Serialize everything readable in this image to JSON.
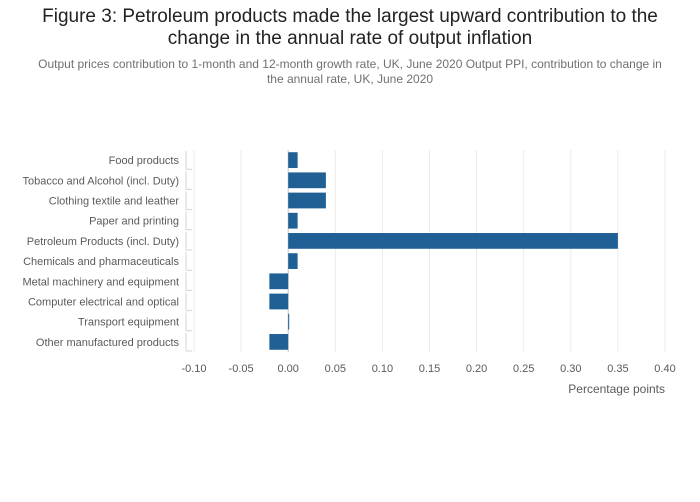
{
  "chart_data": {
    "type": "bar",
    "orientation": "horizontal",
    "title_lines": [
      "Figure 3: Petroleum products made the largest upward contribution to the",
      "change in the annual rate of output inflation"
    ],
    "subtitle": "Output prices contribution to 1-month and 12-month growth rate, UK, June 2020 Output PPI, contribution to change in the annual rate, UK, June 2020",
    "xlabel": "Percentage points",
    "ylabel": "",
    "xlim": [
      -0.1,
      0.4
    ],
    "xticks": [
      "-0.10",
      "-0.05",
      "0.00",
      "0.05",
      "0.10",
      "0.15",
      "0.20",
      "0.25",
      "0.30",
      "0.35",
      "0.40"
    ],
    "categories": [
      "Food products",
      "Tobacco and Alcohol (incl. Duty)",
      "Clothing textile and leather",
      "Paper and printing",
      "Petroleum Products (incl. Duty)",
      "Chemicals and pharmaceuticals",
      "Metal machinery and equipment",
      "Computer electrical and optical",
      "Transport equipment",
      "Other manufactured products"
    ],
    "values": [
      0.01,
      0.04,
      0.04,
      0.01,
      0.35,
      0.01,
      -0.02,
      -0.02,
      0.0,
      -0.02
    ],
    "bar_color": "#206095",
    "grid": true
  }
}
